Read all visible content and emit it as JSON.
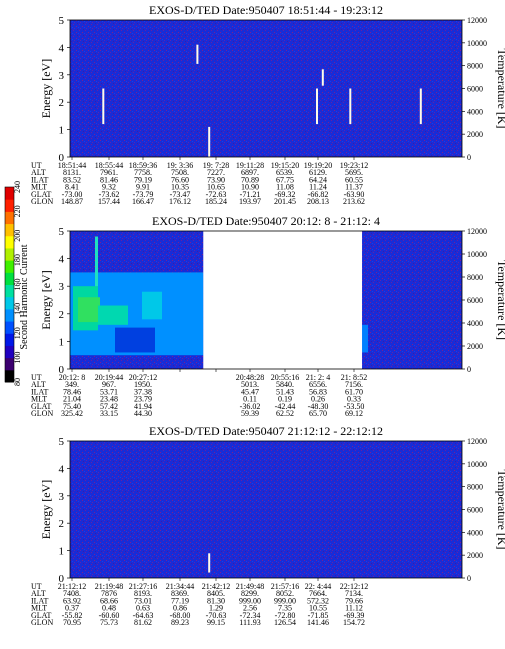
{
  "colorbar": {
    "label": "Second Harmonic Current",
    "ticks": [
      "80",
      "100",
      "120",
      "140",
      "160",
      "180",
      "200",
      "220",
      "240"
    ],
    "min": 80,
    "max": 240,
    "colors": [
      "#000000",
      "#3c0070",
      "#2000c0",
      "#0018e8",
      "#0050ff",
      "#0090ff",
      "#00c8e8",
      "#00e0a0",
      "#00e040",
      "#40f000",
      "#b0f000",
      "#ffff00",
      "#ffc000",
      "#ff7000",
      "#ff2000",
      "#e00000"
    ]
  },
  "chart_data": [
    {
      "type": "heatmap",
      "title": "EXOS-D/TED  Date:950407  18:51:44 - 19:23:12",
      "ylabel": "Energy [eV]",
      "ylabel_right": "Temperature [K]",
      "ylim": [
        0,
        5
      ],
      "ylim_right": [
        0,
        12000
      ],
      "yticks": [
        "0",
        "1",
        "2",
        "3",
        "4",
        "5"
      ],
      "yticks_right": [
        "0",
        "2000",
        "4000",
        "6000",
        "8000",
        "10000",
        "12000"
      ],
      "gap": null,
      "background": "mostly low values (blue/purple) across full energy range",
      "segments": [
        {
          "x": 0.085,
          "y0": 1.2,
          "y1": 2.5
        },
        {
          "x": 0.325,
          "y0": 3.4,
          "y1": 4.1
        },
        {
          "x": 0.355,
          "y0": 0.0,
          "y1": 1.1
        },
        {
          "x": 0.63,
          "y0": 1.2,
          "y1": 2.5
        },
        {
          "x": 0.645,
          "y0": 2.6,
          "y1": 3.2
        },
        {
          "x": 0.715,
          "y0": 1.2,
          "y1": 2.5
        },
        {
          "x": 0.895,
          "y0": 1.2,
          "y1": 2.5
        }
      ],
      "table": {
        "row_labels": [
          "UT",
          "ALT",
          "ILAT",
          "MLT",
          "GLAT",
          "GLON"
        ],
        "columns": [
          [
            "18:51:44",
            "8131.",
            "83.52",
            "8.41",
            "-73.00",
            "148.87"
          ],
          [
            "18:55:44",
            "7961.",
            "81.46",
            "9.32",
            "-73.62",
            "157.44"
          ],
          [
            "18:59:36",
            "7758.",
            "79.19",
            "9.91",
            "-73.79",
            "166.47"
          ],
          [
            "19: 3:36",
            "7508.",
            "76.60",
            "10.35",
            "-73.47",
            "176.12"
          ],
          [
            "19: 7:28",
            "7227.",
            "73.90",
            "10.65",
            "-72.63",
            "185.24"
          ],
          [
            "19:11:28",
            "6897.",
            "70.89",
            "10.90",
            "-71.21",
            "193.97"
          ],
          [
            "19:15:20",
            "6539.",
            "67.75",
            "11.08",
            "-69.32",
            "201.45"
          ],
          [
            "19:19:20",
            "6129.",
            "64.24",
            "11.24",
            "-66.82",
            "208.13"
          ],
          [
            "19:23:12",
            "5695.",
            "60.55",
            "11.37",
            "-63.90",
            "213.62"
          ]
        ]
      }
    },
    {
      "type": "heatmap",
      "title": "EXOS-D/TED   Date:950407  20:12: 8 - 21:12: 4",
      "ylabel": "Energy [eV]",
      "ylabel_right": "Temperature [K]",
      "ylim": [
        0,
        5
      ],
      "ylim_right": [
        0,
        12000
      ],
      "yticks": [
        "0",
        "1",
        "2",
        "3",
        "4",
        "5"
      ],
      "yticks_right": [
        "0",
        "2000",
        "4000",
        "6000",
        "8000",
        "10000",
        "12000"
      ],
      "gap": [
        0.34,
        0.745
      ],
      "background": "enhanced green/cyan signal 1-3 eV in first third; blue elsewhere; no data in gap",
      "segments": [],
      "table": {
        "row_labels": [
          "UT",
          "ALT",
          "ILAT",
          "MLT",
          "GLAT",
          "GLON"
        ],
        "columns": [
          [
            "20:12: 8",
            "349.",
            "78.46",
            "21.04",
            "75.40",
            "325.42"
          ],
          [
            "20:19:44",
            "967.",
            "53.71",
            "23.48",
            "57.42",
            "33.15"
          ],
          [
            "20:27:12",
            "1950.",
            "37.38",
            "23.79",
            "41.94",
            "44.30"
          ],
          null,
          null,
          [
            "20:48:28",
            "5013.",
            "45.47",
            "0.11",
            "-36.02",
            "59.39"
          ],
          [
            "20:55:16",
            "5840.",
            "51.43",
            "0.19",
            "-42.44",
            "62.52"
          ],
          [
            "21: 2: 4",
            "6556.",
            "56.83",
            "0.26",
            "-48.30",
            "65.70"
          ],
          [
            "21: 8:52",
            "7156.",
            "61.70",
            "0.33",
            "-53.50",
            "69.12"
          ]
        ]
      }
    },
    {
      "type": "heatmap",
      "title": "EXOS-D/TED  Date:950407  21:12:12 - 22:12:12",
      "ylabel": "Energy [eV]",
      "ylabel_right": "Temperature [K]",
      "ylim": [
        0,
        5
      ],
      "ylim_right": [
        0,
        12000
      ],
      "yticks": [
        "0",
        "1",
        "2",
        "3",
        "4",
        "5"
      ],
      "yticks_right": [
        "0",
        "2000",
        "4000",
        "6000",
        "8000",
        "10000",
        "12000"
      ],
      "gap": null,
      "background": "mostly low values (blue/purple) across full energy range",
      "segments": [
        {
          "x": 0.355,
          "y0": 0.2,
          "y1": 0.9
        }
      ],
      "table": {
        "row_labels": [
          "UT",
          "ALT",
          "ILAT",
          "MLT",
          "GLAT",
          "GLON"
        ],
        "columns": [
          [
            "21:12:12",
            "7408.",
            "63.92",
            "0.37",
            "-55.82",
            "70.95"
          ],
          [
            "21:19:48",
            "7876",
            "68.66",
            "0.48",
            "-60.60",
            "75.73"
          ],
          [
            "21:27:16",
            "8193.",
            "73.01",
            "0.63",
            "-64.63",
            "81.62"
          ],
          [
            "21:34:44",
            "8369.",
            "77.19",
            "0.86",
            "-68.00",
            "89.23"
          ],
          [
            "21:42:12",
            "8405.",
            "81.30",
            "1.29",
            "-70.63",
            "99.15"
          ],
          [
            "21:49:48",
            "8299.",
            "999.00",
            "2.56",
            "-72.34",
            "111.93"
          ],
          [
            "21:57:16",
            "8052.",
            "999.00",
            "7.35",
            "-72.80",
            "126.54"
          ],
          [
            "22: 4:44",
            "7664.",
            "572.32",
            "10.55",
            "-71.85",
            "141.46"
          ],
          [
            "22:12:12",
            "7134.",
            "79.66",
            "11.12",
            "-69.39",
            "154.72"
          ]
        ]
      }
    }
  ]
}
